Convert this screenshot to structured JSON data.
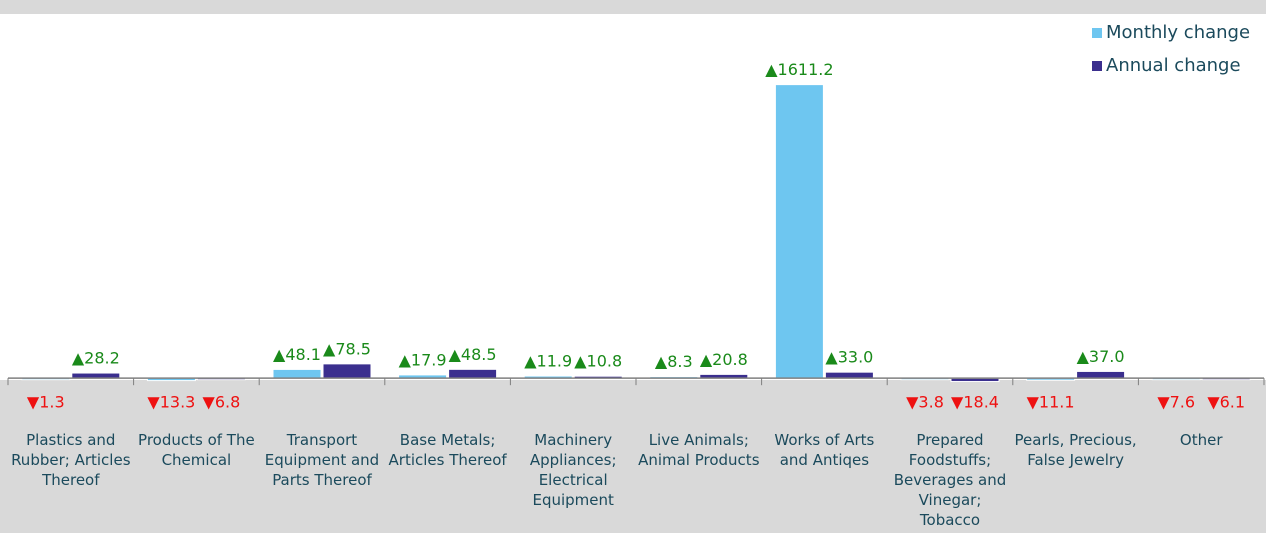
{
  "chart_data": {
    "type": "bar",
    "categories": [
      "Plastics and Rubber; Articles Thereof",
      "Products of The Chemical",
      "Transport Equipment and Parts Thereof",
      "Base Metals; Articles Thereof",
      "Machinery Appliances; Electrical Equipment",
      "Live Animals; Animal Products",
      "Works of Arts and Antiqes",
      "Prepared Foodstuffs; Beverages and Vinegar; Tobacco",
      "Pearls, Precious, False Jewelry",
      "Other"
    ],
    "series": [
      {
        "name": "Monthly change",
        "color": "#6ec6f0",
        "values": [
          -1.3,
          -13.3,
          48.1,
          17.9,
          11.9,
          8.3,
          1611.2,
          -3.8,
          -11.1,
          -7.6
        ],
        "value_labels": [
          "▼1.3",
          "▼13.3",
          "▲48.1",
          "▲17.9",
          "▲11.9",
          "▲8.3",
          "▲1611.2",
          "▼3.8",
          "▼11.1",
          "▼7.6"
        ]
      },
      {
        "name": "Annual change",
        "color": "#3b2f8e",
        "values": [
          28.2,
          -6.8,
          78.5,
          48.5,
          10.8,
          20.8,
          33.0,
          -18.4,
          37.0,
          -6.1
        ],
        "value_labels": [
          "▲28.2",
          "▼6.8",
          "▲78.5",
          "▲48.5",
          "▲10.8",
          "▲20.8",
          "▲33.0",
          "▼18.4",
          "▲37.0",
          "▼6.1"
        ]
      }
    ],
    "ylim": [
      -10,
      1900
    ],
    "legend": "top-right"
  }
}
